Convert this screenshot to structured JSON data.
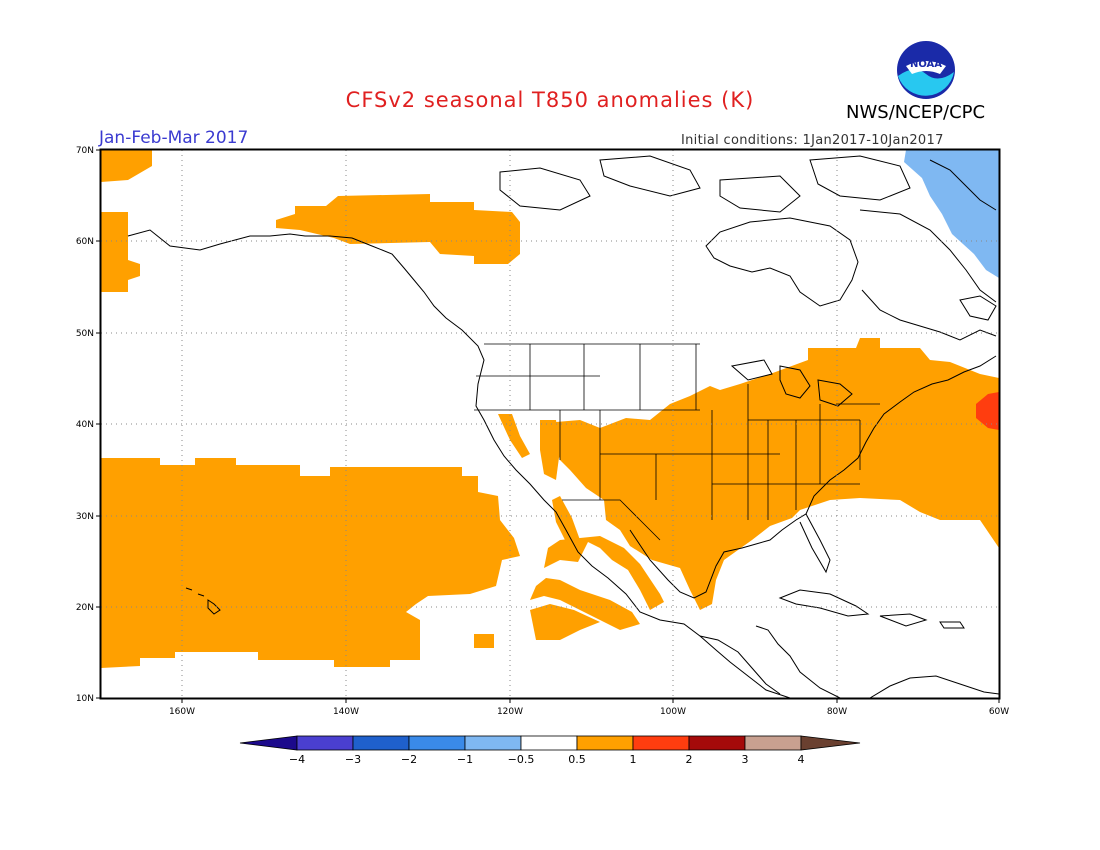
{
  "title": "CFSv2 seasonal T850 anomalies (K)",
  "agency": "NWS/NCEP/CPC",
  "logo_text": "NOAA",
  "season": "Jan-Feb-Mar 2017",
  "initial_conditions": "Initial conditions: 1Jan2017-10Jan2017",
  "lat_labels": [
    "70N",
    "60N",
    "50N",
    "40N",
    "30N",
    "20N",
    "10N"
  ],
  "lon_labels": [
    "160W",
    "140W",
    "120W",
    "100W",
    "80W",
    "60W"
  ],
  "colorbar": {
    "labels": [
      "-4",
      "-3",
      "-2",
      "-1",
      "-0.5",
      "0.5",
      "1",
      "2",
      "3",
      "4"
    ],
    "colors": [
      "#1c0a8c",
      "#4a3fd0",
      "#1f60cc",
      "#3a8ae8",
      "#7fb8f2",
      "#ffffff",
      "#ffa000",
      "#ff3d0f",
      "#a50a0a",
      "#c8a090",
      "#6a4030"
    ]
  },
  "map": {
    "projection": "lat-lon",
    "lon_range": [
      -172,
      -60
    ],
    "lat_range": [
      10,
      70
    ],
    "features": [
      "coastlines",
      "us-state-borders",
      "country-borders"
    ],
    "anomaly_regions": [
      {
        "name": "Bering Sea / NW corner",
        "level": "0.5 to 1"
      },
      {
        "name": "Alaska / Beaufort coast",
        "level": "0.5 to 1"
      },
      {
        "name": "Subtropical North Pacific",
        "level": "0.5 to 1"
      },
      {
        "name": "Mexico",
        "level": "0.5 to 1"
      },
      {
        "name": "Southern and Eastern US",
        "level": "0.5 to 1"
      },
      {
        "name": "Western Atlantic",
        "level": "0.5 to 1"
      },
      {
        "name": "Northwest Atlantic near Nova Scotia",
        "level": "1 to 2"
      },
      {
        "name": "Labrador Sea",
        "level": "-1 to -0.5"
      }
    ]
  }
}
